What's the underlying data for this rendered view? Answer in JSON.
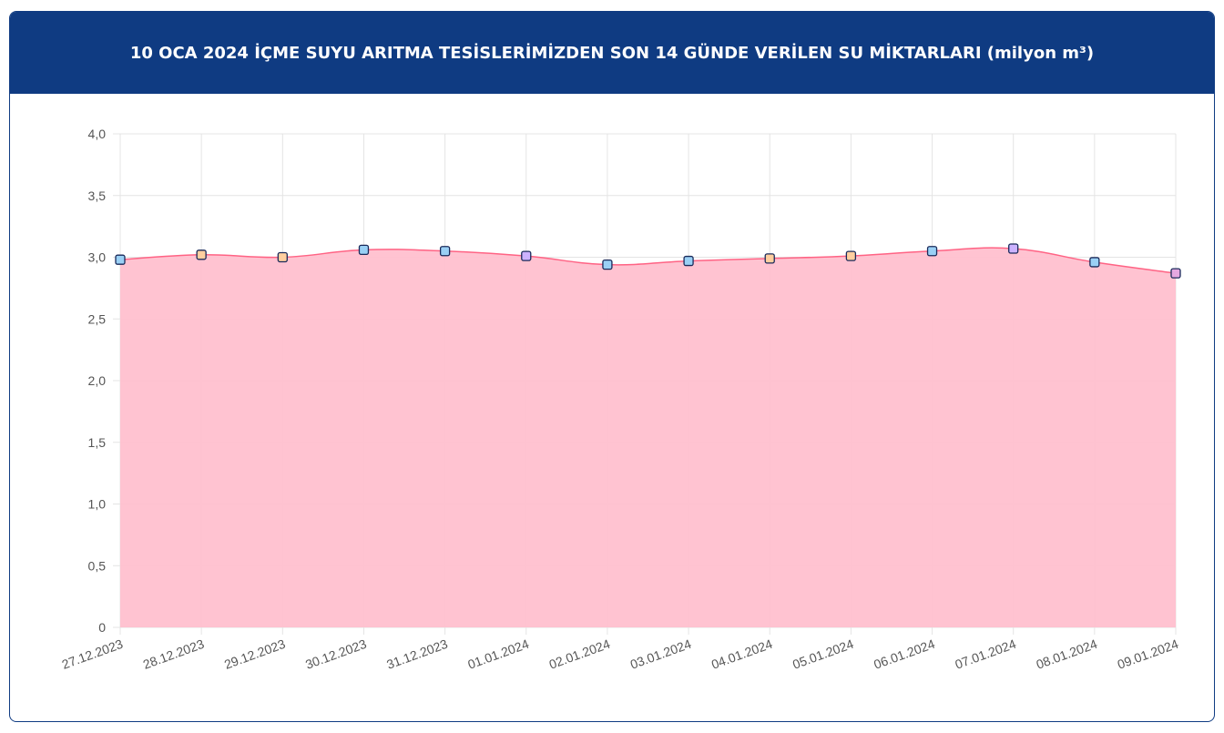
{
  "chart_data": {
    "type": "area",
    "title": "10 OCA 2024 İÇME SUYU ARITMA TESİSLERİMİZDEN SON 14 GÜNDE VERİLEN SU MİKTARLARI (milyon m³)",
    "categories": [
      "27.12.2023",
      "28.12.2023",
      "29.12.2023",
      "30.12.2023",
      "31.12.2023",
      "01.01.2024",
      "02.01.2024",
      "03.01.2024",
      "04.01.2024",
      "05.01.2024",
      "06.01.2024",
      "07.01.2024",
      "08.01.2024",
      "09.01.2024"
    ],
    "values": [
      2.98,
      3.02,
      3.0,
      3.06,
      3.05,
      3.01,
      2.94,
      2.97,
      2.99,
      3.01,
      3.05,
      3.07,
      2.96,
      2.87
    ],
    "line_color": "#ff6384",
    "fill_color": "#ffc0cf",
    "marker_colors": [
      "#9ad0f5",
      "#ffcf9f",
      "#ffcf9f",
      "#9ad0f5",
      "#9ad0f5",
      "#ccb2ff",
      "#9ad0f5",
      "#9ad0f5",
      "#ffcf9f",
      "#ffcf9f",
      "#9ad0f5",
      "#ccb2ff",
      "#9ad0f5",
      "#e5a8e0"
    ],
    "ylim": [
      0,
      4
    ],
    "yticks": [
      0,
      {
        "value": 0.5,
        "label": "0,5"
      },
      {
        "value": 1,
        "label": "1,0"
      },
      {
        "value": 1.5,
        "label": "1,5"
      },
      {
        "value": 2,
        "label": "2,0"
      },
      {
        "value": 2.5,
        "label": "2,5"
      },
      {
        "value": 3,
        "label": "3,0"
      },
      {
        "value": 3.5,
        "label": "3,5"
      },
      {
        "value": 4,
        "label": "4,0"
      }
    ],
    "grid": true
  }
}
